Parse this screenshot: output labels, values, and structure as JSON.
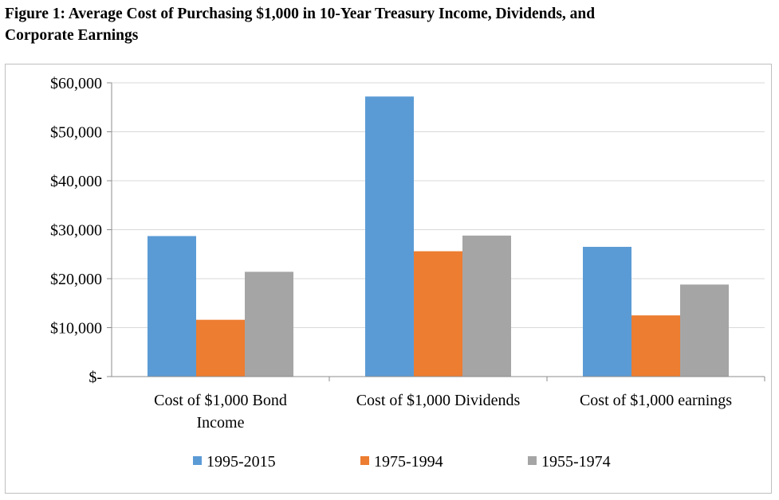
{
  "figure": {
    "title_line1": "Figure 1: Average Cost of Purchasing $1,000 in 10-Year Treasury Income, Dividends, and",
    "title_line2": "Corporate Earnings"
  },
  "chart_data": {
    "type": "bar",
    "categories": [
      [
        "Cost of $1,000 Bond",
        "Income"
      ],
      [
        "Cost of $1,000 Dividends"
      ],
      [
        "Cost of $1,000 earnings"
      ]
    ],
    "series": [
      {
        "name": "1995-2015",
        "color": "#5b9bd5",
        "values": [
          28700,
          57200,
          26500
        ]
      },
      {
        "name": "1975-1994",
        "color": "#ed7d31",
        "values": [
          11600,
          25600,
          12500
        ]
      },
      {
        "name": "1955-1974",
        "color": "#a5a5a5",
        "values": [
          21400,
          28800,
          18800
        ]
      }
    ],
    "y_ticks": [
      {
        "value": 0,
        "label": "$-"
      },
      {
        "value": 10000,
        "label": "$10,000"
      },
      {
        "value": 20000,
        "label": "$20,000"
      },
      {
        "value": 30000,
        "label": "$30,000"
      },
      {
        "value": 40000,
        "label": "$40,000"
      },
      {
        "value": 50000,
        "label": "$50,000"
      },
      {
        "value": 60000,
        "label": "$60,000"
      }
    ],
    "ylim": [
      0,
      60000
    ],
    "grid": true,
    "legend_position": "bottom"
  }
}
